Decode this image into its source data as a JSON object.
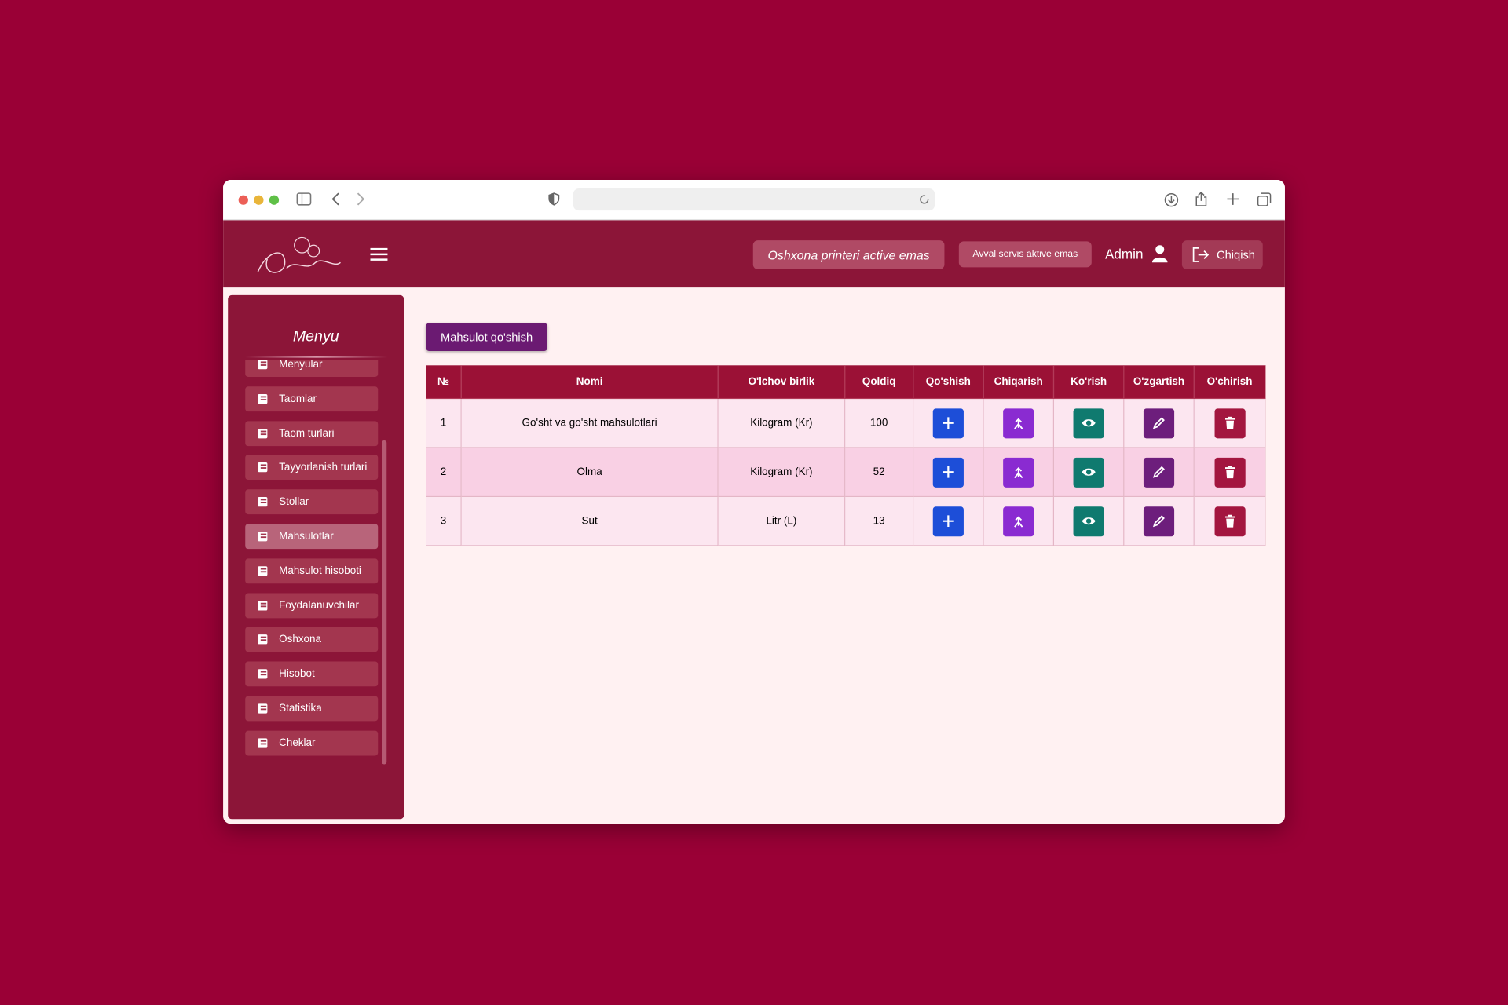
{
  "header": {
    "printer_status": "Oshxona printeri active emas",
    "service_status": "Avval servis aktive emas",
    "user": "Admin",
    "logout": "Chiqish"
  },
  "sidebar": {
    "title": "Menyu",
    "items": [
      "Menyular",
      "Taomlar",
      "Taom turlari",
      "Tayyorlanish turlari",
      "Stollar",
      "Mahsulotlar",
      "Mahsulot hisoboti",
      "Foydalanuvchilar",
      "Oshxona",
      "Hisobot",
      "Statistika",
      "Cheklar"
    ],
    "active": "Mahsulotlar"
  },
  "add_button": "Mahsulot qo'shish",
  "table": {
    "headers": [
      "№",
      "Nomi",
      "O'lchov birlik",
      "Qoldiq",
      "Qo'shish",
      "Chiqarish",
      "Ko'rish",
      "O'zgartish",
      "O'chirish"
    ],
    "rows": [
      [
        "1",
        "Go'sht va go'sht mahsulotlari",
        "Kilogram (Kr)",
        "100"
      ],
      [
        "2",
        "Olma",
        "Kilogram (Kr)",
        "52"
      ],
      [
        "3",
        "Sut",
        "Litr (L)",
        "13"
      ]
    ]
  }
}
